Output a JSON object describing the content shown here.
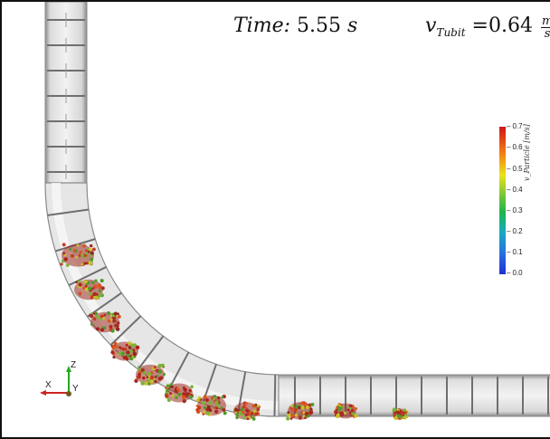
{
  "hud": {
    "time_label": "Time:",
    "time_value": "5.55",
    "time_unit": "s",
    "velocity_symbol": "v",
    "velocity_subscript": "Tubit",
    "velocity_equals": "=",
    "velocity_value": "0.64",
    "velocity_unit_numerator": "m",
    "velocity_unit_denominator": "s"
  },
  "colorbar": {
    "title": "v_Particle [m/s]",
    "ticks": [
      "0.7",
      "0.6",
      "0.5",
      "0.4",
      "0.3",
      "0.2",
      "0.1",
      "0.0"
    ],
    "range": [
      0.0,
      0.7
    ],
    "colors": {
      "max": "#d0131b",
      "mid": "#1db64a",
      "min": "#1e2fd6"
    }
  },
  "axes": {
    "x_label": "X",
    "y_label": "Y",
    "z_label": "Z"
  }
}
